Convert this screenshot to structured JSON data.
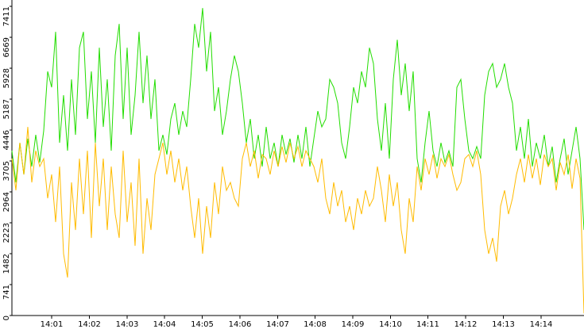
{
  "chart_data": {
    "type": "line",
    "xlim": [
      0,
      144
    ],
    "ylim": [
      0,
      7411
    ],
    "yticks": [
      0,
      741,
      1482,
      2223,
      2964,
      3705,
      4446,
      5187,
      5928,
      6669,
      7411
    ],
    "xticks": [
      {
        "value": 10,
        "label": "14:01"
      },
      {
        "value": 19.5,
        "label": "14:02"
      },
      {
        "value": 29,
        "label": "14:03"
      },
      {
        "value": 38.4,
        "label": "14:04"
      },
      {
        "value": 47.9,
        "label": "14:05"
      },
      {
        "value": 57.4,
        "label": "14:06"
      },
      {
        "value": 66.9,
        "label": "14:07"
      },
      {
        "value": 76.3,
        "label": "14:08"
      },
      {
        "value": 85.8,
        "label": "14:09"
      },
      {
        "value": 95.3,
        "label": "14:10"
      },
      {
        "value": 104.7,
        "label": "14:11"
      },
      {
        "value": 114.2,
        "label": "14:12"
      },
      {
        "value": 123.7,
        "label": "14:13"
      },
      {
        "value": 133.2,
        "label": "14:14"
      }
    ],
    "series": [
      {
        "color": "#22dd00",
        "values": [
          3950,
          3190,
          4140,
          3380,
          4240,
          3570,
          4330,
          3670,
          4430,
          5850,
          5470,
          6800,
          4140,
          5280,
          3950,
          5660,
          4330,
          6420,
          6800,
          4710,
          5850,
          4140,
          6420,
          4520,
          5660,
          3950,
          6230,
          6990,
          4710,
          6420,
          4330,
          5280,
          6800,
          5090,
          6230,
          4710,
          5660,
          3950,
          4330,
          3860,
          4710,
          5090,
          4330,
          4900,
          4520,
          5660,
          6990,
          6420,
          7370,
          5850,
          6800,
          4900,
          5470,
          4330,
          4900,
          5660,
          6230,
          5850,
          5090,
          4140,
          4710,
          3760,
          4330,
          3570,
          4520,
          3760,
          4140,
          3570,
          4330,
          3860,
          4240,
          3670,
          4330,
          3760,
          4520,
          3570,
          4240,
          4900,
          4520,
          4710,
          5660,
          5470,
          5090,
          4140,
          3760,
          4520,
          5470,
          5090,
          5850,
          5470,
          6420,
          6040,
          4710,
          3950,
          5090,
          3760,
          5660,
          6610,
          5280,
          6040,
          4900,
          5850,
          3760,
          3190,
          4140,
          4900,
          3950,
          3570,
          4140,
          3670,
          3950,
          3570,
          5470,
          5660,
          4710,
          3950,
          3760,
          4050,
          3760,
          5280,
          5850,
          6040,
          5470,
          5660,
          6040,
          5470,
          5090,
          3950,
          4520,
          3760,
          4710,
          3570,
          4140,
          3760,
          4330,
          3570,
          4050,
          3190,
          3760,
          4240,
          3380,
          3950,
          4520,
          3760,
          2050
        ]
      },
      {
        "color": "#ffbb00",
        "values": [
          3760,
          3000,
          4140,
          3380,
          4520,
          3190,
          3950,
          3570,
          3760,
          2810,
          3380,
          2240,
          3570,
          1480,
          910,
          3190,
          2050,
          3760,
          2430,
          3950,
          1860,
          4140,
          2620,
          3760,
          2050,
          3570,
          2430,
          1860,
          3950,
          2240,
          3190,
          1670,
          3760,
          1480,
          2810,
          2050,
          3380,
          3760,
          4140,
          3380,
          3950,
          3190,
          3760,
          3000,
          3570,
          2620,
          1860,
          2810,
          1480,
          2620,
          1860,
          3190,
          2430,
          3570,
          3000,
          3190,
          2810,
          2620,
          3760,
          4140,
          3570,
          3950,
          3290,
          3860,
          3760,
          3380,
          3950,
          3570,
          4050,
          3670,
          4140,
          3760,
          4050,
          3570,
          3950,
          3760,
          3570,
          3190,
          3760,
          2810,
          2430,
          3190,
          2620,
          3000,
          2240,
          2620,
          2050,
          2810,
          2430,
          3000,
          2620,
          2810,
          3570,
          3000,
          2240,
          3380,
          2620,
          3190,
          2050,
          1480,
          2810,
          2240,
          3570,
          3000,
          3760,
          3380,
          3860,
          3290,
          3760,
          3570,
          3860,
          3380,
          3000,
          3190,
          3760,
          3860,
          3570,
          3950,
          3380,
          2050,
          1480,
          1860,
          1290,
          2620,
          3000,
          2430,
          2810,
          3380,
          3760,
          3190,
          3860,
          3290,
          3760,
          3130,
          3860,
          3570,
          3760,
          3000,
          3670,
          3380,
          3860,
          3040,
          3760,
          3290,
          50
        ]
      }
    ]
  }
}
